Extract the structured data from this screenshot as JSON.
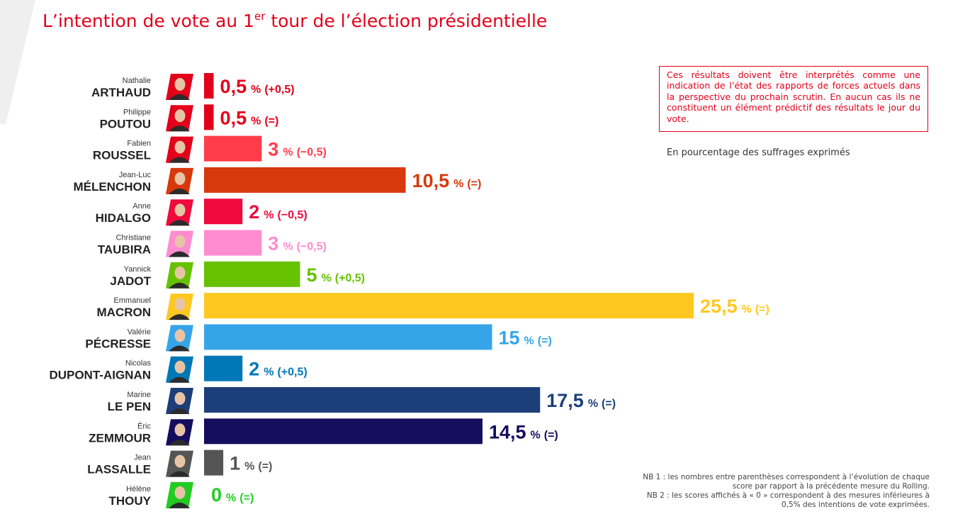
{
  "title": {
    "main": "L’intention de vote au 1",
    "sup": "er",
    "rest": " tour de l’élection présidentielle"
  },
  "notice": "Ces résultats doivent être interprétés comme une indication de l’état des rapports de forces actuels dans la perspective du prochain scrutin. En aucun cas ils ne constituent un élément prédictif des résultats le jour du vote.",
  "subtitle": "En pourcentage des suffrages exprimés",
  "notes": [
    "NB 1 : les nombres entre parenthèses correspondent à l’évolution de chaque score par rapport à la précédente mesure du Rolling.",
    "NB 2 : les scores affichés à « 0 » correspondent à des mesures inférieures à 0,5% des intentions de vote exprimées."
  ],
  "chart_data": {
    "type": "bar",
    "orientation": "horizontal",
    "title": "L’intention de vote au 1er tour de l’élection présidentielle",
    "unit": "%",
    "xlim": [
      0,
      25.5
    ],
    "categories": [
      "Nathalie ARTHAUD",
      "Philippe POUTOU",
      "Fabien ROUSSEL",
      "Jean-Luc MÉLENCHON",
      "Anne HIDALGO",
      "Christiane TAUBIRA",
      "Yannick JADOT",
      "Emmanuel MACRON",
      "Valérie PÉCRESSE",
      "Nicolas DUPONT-AIGNAN",
      "Marine LE PEN",
      "Éric ZEMMOUR",
      "Jean LASSALLE",
      "Hélène THOUY"
    ],
    "bars": [
      {
        "first": "Nathalie",
        "last": "ARTHAUD",
        "value": 0.5,
        "label": "0,5",
        "unit": "%",
        "change": "(+0,5)",
        "color": "#e2001a",
        "portrait": "#e2001a"
      },
      {
        "first": "Philippe",
        "last": "POUTOU",
        "value": 0.5,
        "label": "0,5",
        "unit": "%",
        "change": "(=)",
        "color": "#e2001a",
        "portrait": "#e2001a"
      },
      {
        "first": "Fabien",
        "last": "ROUSSEL",
        "value": 3,
        "label": "3",
        "unit": "%",
        "change": "(−0,5)",
        "color": "#ff3d4a",
        "portrait": "#e2001a"
      },
      {
        "first": "Jean-Luc",
        "last": "MÉLENCHON",
        "value": 10.5,
        "label": "10,5",
        "unit": "%",
        "change": "(=)",
        "color": "#d7380c",
        "portrait": "#d7380c"
      },
      {
        "first": "Anne",
        "last": "HIDALGO",
        "value": 2,
        "label": "2",
        "unit": "%",
        "change": "(−0,5)",
        "color": "#ee0a3c",
        "portrait": "#ee0a3c"
      },
      {
        "first": "Christiane",
        "last": "TAUBIRA",
        "value": 3,
        "label": "3",
        "unit": "%",
        "change": "(−0,5)",
        "color": "#ff8bd0",
        "portrait": "#ff8bd0"
      },
      {
        "first": "Yannick",
        "last": "JADOT",
        "value": 5,
        "label": "5",
        "unit": "%",
        "change": "(+0,5)",
        "color": "#66c200",
        "portrait": "#66c200"
      },
      {
        "first": "Emmanuel",
        "last": "MACRON",
        "value": 25.5,
        "label": "25,5",
        "unit": "%",
        "change": "(=)",
        "color": "#ffc820",
        "portrait": "#ffc820"
      },
      {
        "first": "Valérie",
        "last": "PÉCRESSE",
        "value": 15,
        "label": "15",
        "unit": "%",
        "change": "(=)",
        "color": "#36a5e8",
        "portrait": "#36a5e8"
      },
      {
        "first": "Nicolas",
        "last": "DUPONT-AIGNAN",
        "value": 2,
        "label": "2",
        "unit": "%",
        "change": "(+0,5)",
        "color": "#0077b6",
        "portrait": "#0077b6"
      },
      {
        "first": "Marine",
        "last": "LE PEN",
        "value": 17.5,
        "label": "17,5",
        "unit": "%",
        "change": "(=)",
        "color": "#1c3f7a",
        "portrait": "#1c3f7a"
      },
      {
        "first": "Éric",
        "last": "ZEMMOUR",
        "value": 14.5,
        "label": "14,5",
        "unit": "%",
        "change": "(=)",
        "color": "#150d5e",
        "portrait": "#150d5e"
      },
      {
        "first": "Jean",
        "last": "LASSALLE",
        "value": 1,
        "label": "1",
        "unit": "%",
        "change": "(=)",
        "color": "#555555",
        "portrait": "#555555"
      },
      {
        "first": "Hélène",
        "last": "THOUY",
        "value": 0,
        "label": "0",
        "unit": "%",
        "change": "(=)",
        "color": "#22cc22",
        "portrait": "#22cc22"
      }
    ]
  }
}
